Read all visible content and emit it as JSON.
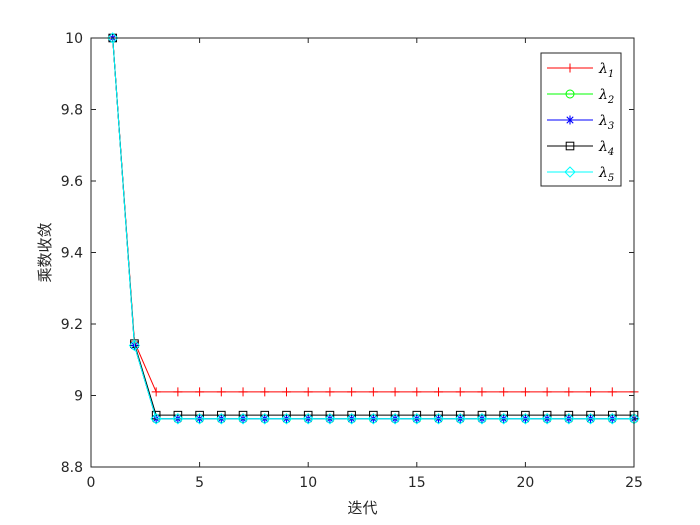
{
  "chart_data": {
    "type": "line",
    "xlabel": "迭代",
    "ylabel": "乘数收敛",
    "xlim": [
      0,
      25
    ],
    "ylim": [
      8.8,
      10
    ],
    "xticks": [
      0,
      5,
      10,
      15,
      20,
      25
    ],
    "yticks": [
      8.8,
      9,
      9.2,
      9.4,
      9.6,
      9.8,
      10
    ],
    "ytick_labels": [
      "8.8",
      "9",
      "9.2",
      "9.4",
      "9.6",
      "9.8",
      "10"
    ],
    "x": [
      1,
      2,
      3,
      4,
      5,
      6,
      7,
      8,
      9,
      10,
      11,
      12,
      13,
      14,
      15,
      16,
      17,
      18,
      19,
      20,
      21,
      22,
      23,
      24,
      25
    ],
    "legend_position": "top-right",
    "grid": false,
    "series": [
      {
        "name": "λ1",
        "base": "λ",
        "sub": "1",
        "color": "#ff0000",
        "marker": "plus",
        "values": [
          10,
          9.15,
          9.01,
          9.01,
          9.01,
          9.01,
          9.01,
          9.01,
          9.01,
          9.01,
          9.01,
          9.01,
          9.01,
          9.01,
          9.01,
          9.01,
          9.01,
          9.01,
          9.01,
          9.01,
          9.01,
          9.01,
          9.01,
          9.01,
          9.01
        ]
      },
      {
        "name": "λ2",
        "base": "λ",
        "sub": "2",
        "color": "#00ff00",
        "marker": "circle",
        "values": [
          10,
          9.14,
          8.935,
          8.935,
          8.935,
          8.935,
          8.935,
          8.935,
          8.935,
          8.935,
          8.935,
          8.935,
          8.935,
          8.935,
          8.935,
          8.935,
          8.935,
          8.935,
          8.935,
          8.935,
          8.935,
          8.935,
          8.935,
          8.935,
          8.935
        ]
      },
      {
        "name": "λ3",
        "base": "λ",
        "sub": "3",
        "color": "#0000ff",
        "marker": "asterisk",
        "values": [
          10,
          9.14,
          8.935,
          8.935,
          8.935,
          8.935,
          8.935,
          8.935,
          8.935,
          8.935,
          8.935,
          8.935,
          8.935,
          8.935,
          8.935,
          8.935,
          8.935,
          8.935,
          8.935,
          8.935,
          8.935,
          8.935,
          8.935,
          8.935,
          8.935
        ]
      },
      {
        "name": "λ4",
        "base": "λ",
        "sub": "4",
        "color": "#000000",
        "marker": "square",
        "values": [
          10,
          9.145,
          8.945,
          8.945,
          8.945,
          8.945,
          8.945,
          8.945,
          8.945,
          8.945,
          8.945,
          8.945,
          8.945,
          8.945,
          8.945,
          8.945,
          8.945,
          8.945,
          8.945,
          8.945,
          8.945,
          8.945,
          8.945,
          8.945,
          8.945
        ]
      },
      {
        "name": "λ5",
        "base": "λ",
        "sub": "5",
        "color": "#00ffff",
        "marker": "diamond",
        "values": [
          10,
          9.14,
          8.935,
          8.935,
          8.935,
          8.935,
          8.935,
          8.935,
          8.935,
          8.935,
          8.935,
          8.935,
          8.935,
          8.935,
          8.935,
          8.935,
          8.935,
          8.935,
          8.935,
          8.935,
          8.935,
          8.935,
          8.935,
          8.935,
          8.935
        ]
      }
    ]
  }
}
